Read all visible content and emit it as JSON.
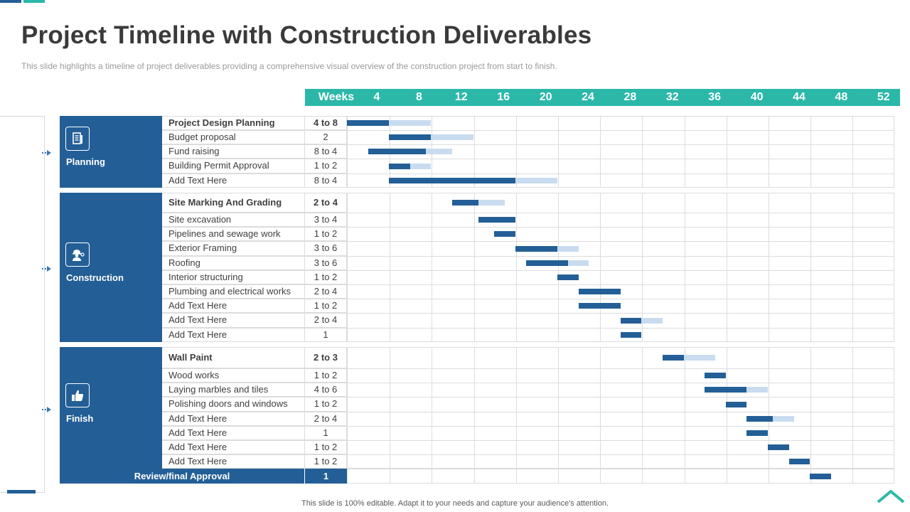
{
  "title": "Project Timeline with Construction Deliverables",
  "subtitle": "This slide highlights a timeline of project deliverables providing a comprehensive visual overview of the construction project from start to finish.",
  "weeks_label": "Weeks",
  "week_ticks": [
    "4",
    "8",
    "12",
    "16",
    "20",
    "24",
    "28",
    "32",
    "36",
    "40",
    "44",
    "48",
    "52"
  ],
  "colors": {
    "dark_blue": "#235f96",
    "teal": "#2bb8a8",
    "light_blue": "#c9dcef"
  },
  "categories": [
    {
      "name": "Planning",
      "icon": "document-icon",
      "tasks": [
        {
          "label": "Project Design Planning",
          "duration": "4 to 8",
          "dark": [
            0,
            4
          ],
          "light": [
            4,
            8
          ]
        },
        {
          "label": "Budget proposal",
          "duration": "2",
          "dark": [
            4,
            8
          ],
          "light": [
            8,
            12
          ]
        },
        {
          "label": "Fund raising",
          "duration": "8 to 4",
          "dark": [
            2,
            7.5
          ],
          "light": [
            7.5,
            10
          ]
        },
        {
          "label": "Building Permit Approval",
          "duration": "1 to 2",
          "dark": [
            4,
            6
          ],
          "light": [
            6,
            8
          ]
        },
        {
          "label": "Add Text Here",
          "duration": "8 to 4",
          "dark": [
            4,
            16
          ],
          "light": [
            16,
            20
          ]
        }
      ]
    },
    {
      "name": "Construction",
      "icon": "worker-icon",
      "tasks": [
        {
          "label": "Site Marking And Grading",
          "duration": "2 to 4",
          "dark": [
            10,
            12.5
          ],
          "light": [
            12.5,
            15
          ]
        },
        {
          "label": "Site excavation",
          "duration": "3 to 4",
          "dark": [
            12.5,
            16
          ],
          "light": null
        },
        {
          "label": "Pipelines and sewage work",
          "duration": "1 to 2",
          "dark": [
            14,
            16
          ],
          "light": null
        },
        {
          "label": "Exterior Framing",
          "duration": "3 to 6",
          "dark": [
            16,
            20
          ],
          "light": [
            20,
            22
          ]
        },
        {
          "label": "Roofing",
          "duration": "3 to 6",
          "dark": [
            17,
            21
          ],
          "light": [
            21,
            23
          ]
        },
        {
          "label": "Interior structuring",
          "duration": "1 to 2",
          "dark": [
            20,
            22
          ],
          "light": null
        },
        {
          "label": "Plumbing and electrical works",
          "duration": "2 to 4",
          "dark": [
            22,
            26
          ],
          "light": null
        },
        {
          "label": "Add Text Here",
          "duration": "1 to 2",
          "dark": [
            22,
            26
          ],
          "light": null
        },
        {
          "label": "Add Text Here",
          "duration": "2 to 4",
          "dark": [
            26,
            28
          ],
          "light": [
            28,
            30
          ]
        },
        {
          "label": "Add Text Here",
          "duration": "1",
          "dark": [
            26,
            28
          ],
          "light": null
        }
      ]
    },
    {
      "name": "Finish",
      "icon": "thumbs-up-icon",
      "tasks": [
        {
          "label": "Wall Paint",
          "duration": "2 to 3",
          "dark": [
            30,
            32
          ],
          "light": [
            32,
            35
          ]
        },
        {
          "label": "Wood works",
          "duration": "1 to 2",
          "dark": [
            34,
            36
          ],
          "light": null
        },
        {
          "label": "Laying marbles and tiles",
          "duration": "4 to 6",
          "dark": [
            34,
            38
          ],
          "light": [
            38,
            40
          ]
        },
        {
          "label": "Polishing doors and windows",
          "duration": "1 to 2",
          "dark": [
            36,
            38
          ],
          "light": null
        },
        {
          "label": "Add Text Here",
          "duration": "2 to 4",
          "dark": [
            38,
            40.5
          ],
          "light": [
            40.5,
            42.5
          ]
        },
        {
          "label": "Add Text Here",
          "duration": "1",
          "dark": [
            38,
            40
          ],
          "light": null
        },
        {
          "label": "Add Text Here",
          "duration": "1 to 2",
          "dark": [
            40,
            42
          ],
          "light": null
        },
        {
          "label": "Add Text Here",
          "duration": "1 to 2",
          "dark": [
            42,
            44
          ],
          "light": null
        }
      ]
    }
  ],
  "review": {
    "label": "Review/final Approval",
    "duration": "1",
    "dark": [
      44,
      46
    ]
  },
  "footer": "This slide is 100% editable.  Adapt it to your needs and capture your audience's attention."
}
